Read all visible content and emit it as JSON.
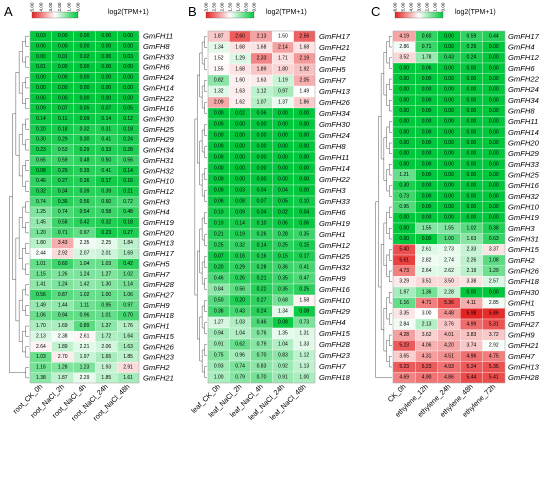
{
  "legend_title": "log2(TPM+1)",
  "chart_data": [
    {
      "type": "heatmap",
      "panel": "A",
      "legend_ticks": [
        "5.00",
        "4.00",
        "3.00",
        "2.00",
        "1.00",
        "0.00"
      ],
      "columns": [
        "root_CK_0h",
        "root_NaCl_2h",
        "root_NaCl_4h",
        "root_NaCl_24h",
        "root_NaCl_48h"
      ],
      "rows": [
        {
          "gene": "GmFH11",
          "values": [
            0.03,
            0.0,
            0.0,
            0.0,
            0.0
          ]
        },
        {
          "gene": "GmFH8",
          "values": [
            0.0,
            0.0,
            0.0,
            0.0,
            0.0
          ]
        },
        {
          "gene": "GmFH33",
          "values": [
            0.0,
            0.01,
            0.02,
            0.0,
            0.03
          ]
        },
        {
          "gene": "GmFH6",
          "values": [
            0.01,
            0.0,
            0.0,
            0.0,
            0.0
          ]
        },
        {
          "gene": "GmFH24",
          "values": [
            0.0,
            0.0,
            0.0,
            0.0,
            0.0
          ]
        },
        {
          "gene": "GmFH14",
          "values": [
            0.0,
            0.0,
            0.0,
            0.0,
            0.0
          ]
        },
        {
          "gene": "GmFH22",
          "values": [
            0.0,
            0.0,
            0.0,
            0.0,
            0.0
          ]
        },
        {
          "gene": "GmFH16",
          "values": [
            0.09,
            0.07,
            0.05,
            0.07,
            0.05
          ]
        },
        {
          "gene": "GmFH30",
          "values": [
            0.14,
            0.11,
            0.09,
            0.14,
            0.12
          ]
        },
        {
          "gene": "GmFH25",
          "values": [
            0.2,
            0.18,
            0.32,
            0.31,
            0.18
          ]
        },
        {
          "gene": "GmFH29",
          "values": [
            0.3,
            0.29,
            0.3,
            0.41,
            0.24
          ]
        },
        {
          "gene": "GmFH34",
          "values": [
            0.23,
            0.53,
            0.29,
            0.33,
            0.28
          ]
        },
        {
          "gene": "GmFH31",
          "values": [
            0.65,
            0.59,
            0.48,
            0.5,
            0.56
          ]
        },
        {
          "gene": "GmFH32",
          "values": [
            0.08,
            0.29,
            0.39,
            0.41,
            0.14
          ]
        },
        {
          "gene": "GmFH10",
          "values": [
            0.46,
            0.27,
            0.36,
            0.17,
            0.16
          ]
        },
        {
          "gene": "GmFH12",
          "values": [
            0.32,
            0.34,
            0.39,
            0.39,
            0.21
          ]
        },
        {
          "gene": "GmFH3",
          "values": [
            0.74,
            0.36,
            0.56,
            0.6,
            0.72
          ]
        },
        {
          "gene": "GmFH4",
          "values": [
            1.25,
            0.74,
            0.54,
            0.58,
            0.48
          ]
        },
        {
          "gene": "GmFH19",
          "values": [
            1.45,
            0.58,
            0.42,
            0.32,
            0.18
          ]
        },
        {
          "gene": "GmFH20",
          "values": [
            1.2,
            0.71,
            0.97,
            0.23,
            0.27
          ]
        },
        {
          "gene": "GmFH13",
          "values": [
            1.8,
            3.43,
            2.35,
            2.25,
            1.84
          ]
        },
        {
          "gene": "GmFH17",
          "values": [
            2.44,
            2.92,
            2.07,
            2.01,
            1.69
          ]
        },
        {
          "gene": "GmFH5",
          "values": [
            1.01,
            0.6,
            1.04,
            1.03,
            0.42
          ]
        },
        {
          "gene": "GmFH7",
          "values": [
            1.15,
            1.26,
            1.24,
            1.27,
            1.02
          ]
        },
        {
          "gene": "GmFH28",
          "values": [
            1.41,
            1.24,
            1.42,
            1.3,
            1.14
          ]
        },
        {
          "gene": "GmFH27",
          "values": [
            0.56,
            0.87,
            1.02,
            1.0,
            1.06
          ]
        },
        {
          "gene": "GmFH9",
          "values": [
            1.49,
            1.44,
            1.11,
            0.95,
            0.97
          ]
        },
        {
          "gene": "GmFH18",
          "values": [
            1.06,
            0.94,
            0.96,
            1.01,
            0.7
          ]
        },
        {
          "gene": "GmFH1",
          "values": [
            1.7,
            1.69,
            0.89,
            1.37,
            1.76
          ]
        },
        {
          "gene": "GmFH15",
          "values": [
            2.13,
            2.38,
            2.61,
            1.72,
            1.64
          ]
        },
        {
          "gene": "GmFH26",
          "values": [
            2.64,
            1.89,
            2.21,
            2.06,
            1.63
          ]
        },
        {
          "gene": "GmFH23",
          "values": [
            1.03,
            2.7,
            1.97,
            1.65,
            1.85
          ]
        },
        {
          "gene": "GmFH2",
          "values": [
            1.16,
            1.28,
            1.23,
            1.93,
            2.91
          ]
        },
        {
          "gene": "GmFH21",
          "values": [
            1.38,
            1.87,
            2.29,
            1.85,
            1.61
          ]
        }
      ]
    },
    {
      "type": "heatmap",
      "panel": "B",
      "legend_ticks": [
        "3.00",
        "2.50",
        "2.00",
        "1.50",
        "1.00",
        "0.50",
        "0.00"
      ],
      "columns": [
        "leaf_CK_0h",
        "leaf_NaCl_2h",
        "leaf_NaCl_4h",
        "leaf_NaCl_24h",
        "leaf_NaCl_48h"
      ],
      "rows": [
        {
          "gene": "GmFH17",
          "values": [
            1.87,
            2.6,
            2.13,
            1.5,
            2.56
          ]
        },
        {
          "gene": "GmFH21",
          "values": [
            1.34,
            1.68,
            1.68,
            2.14,
            1.68
          ]
        },
        {
          "gene": "GmFH2",
          "values": [
            1.52,
            1.29,
            2.33,
            1.71,
            2.19
          ]
        },
        {
          "gene": "GmFH5",
          "values": [
            1.55,
            1.68,
            1.89,
            1.8,
            1.92
          ]
        },
        {
          "gene": "GmFH7",
          "values": [
            0.82,
            1.6,
            1.63,
            1.19,
            2.05
          ]
        },
        {
          "gene": "GmFH13",
          "values": [
            1.32,
            1.63,
            1.12,
            0.97,
            1.49
          ]
        },
        {
          "gene": "GmFH26",
          "values": [
            2.09,
            1.62,
            1.07,
            1.37,
            1.86
          ]
        },
        {
          "gene": "GmFH34",
          "values": [
            0.0,
            0.02,
            0.06,
            0.0,
            0.0
          ]
        },
        {
          "gene": "GmFH30",
          "values": [
            0.0,
            0.0,
            0.0,
            0.0,
            0.0
          ]
        },
        {
          "gene": "GmFH24",
          "values": [
            0.0,
            0.0,
            0.0,
            0.0,
            0.0
          ]
        },
        {
          "gene": "GmFH8",
          "values": [
            0.0,
            0.0,
            0.0,
            0.0,
            0.0
          ]
        },
        {
          "gene": "GmFH11",
          "values": [
            0.0,
            0.0,
            0.0,
            0.0,
            0.0
          ]
        },
        {
          "gene": "GmFH14",
          "values": [
            0.0,
            0.0,
            0.0,
            0.0,
            0.0
          ]
        },
        {
          "gene": "GmFH22",
          "values": [
            0.0,
            0.0,
            0.0,
            0.0,
            0.0
          ]
        },
        {
          "gene": "GmFH3",
          "values": [
            0.0,
            0.03,
            0.04,
            0.04,
            0.0
          ]
        },
        {
          "gene": "GmFH33",
          "values": [
            0.06,
            0.08,
            0.07,
            0.05,
            0.1
          ]
        },
        {
          "gene": "GmFH6",
          "values": [
            0.1,
            0.09,
            0.04,
            0.02,
            0.04
          ]
        },
        {
          "gene": "GmFH19",
          "values": [
            0.1,
            0.14,
            0.1,
            0.06,
            0.06
          ]
        },
        {
          "gene": "GmFH1",
          "values": [
            0.21,
            0.19,
            0.26,
            0.28,
            0.35
          ]
        },
        {
          "gene": "GmFH12",
          "values": [
            0.25,
            0.32,
            0.14,
            0.25,
            0.15
          ]
        },
        {
          "gene": "GmFH25",
          "values": [
            0.07,
            0.16,
            0.16,
            0.15,
            0.17
          ]
        },
        {
          "gene": "GmFH32",
          "values": [
            0.2,
            0.29,
            0.28,
            0.36,
            0.41
          ]
        },
        {
          "gene": "GmFH9",
          "values": [
            0.46,
            0.26,
            0.21,
            0.35,
            0.47
          ]
        },
        {
          "gene": "GmFH16",
          "values": [
            0.84,
            0.56,
            0.22,
            0.35,
            0.25
          ]
        },
        {
          "gene": "GmFH10",
          "values": [
            0.5,
            0.2,
            0.27,
            0.68,
            1.58
          ]
        },
        {
          "gene": "GmFH29",
          "values": [
            0.38,
            0.43,
            0.24,
            1.34,
            0.08
          ]
        },
        {
          "gene": "GmFH4",
          "values": [
            1.27,
            1.03,
            0.46,
            0.08,
            0.73
          ]
        },
        {
          "gene": "GmFH15",
          "values": [
            0.94,
            1.04,
            0.76,
            1.35,
            1.31
          ]
        },
        {
          "gene": "GmFH28",
          "values": [
            0.91,
            0.62,
            0.79,
            1.04,
            1.33
          ]
        },
        {
          "gene": "GmFH23",
          "values": [
            0.75,
            0.96,
            0.7,
            0.83,
            1.12
          ]
        },
        {
          "gene": "GmFH7",
          "values": [
            0.93,
            0.74,
            0.83,
            0.92,
            1.13
          ]
        },
        {
          "gene": "GmFH18",
          "values": [
            1.0,
            0.79,
            0.7,
            0.91,
            1.0
          ]
        }
      ]
    },
    {
      "type": "heatmap",
      "panel": "C",
      "legend_ticks": [
        "6.00",
        "5.00",
        "4.00",
        "3.00",
        "2.00",
        "1.00",
        "0.00"
      ],
      "columns": [
        "CK_0h",
        "ethylene_12h",
        "ethylene_24h",
        "ethylene_48h",
        "ethylene_72h"
      ],
      "rows": [
        {
          "gene": "GmFH17",
          "values": [
            4.19,
            0.6,
            0.0,
            0.59,
            0.44
          ]
        },
        {
          "gene": "GmFH4",
          "values": [
            2.86,
            0.71,
            0.0,
            0.29,
            0.0
          ]
        },
        {
          "gene": "GmFH12",
          "values": [
            3.52,
            1.78,
            0.43,
            0.24,
            0.0
          ]
        },
        {
          "gene": "GmFH6",
          "values": [
            0.0,
            0.06,
            0.0,
            0.0,
            0.0
          ]
        },
        {
          "gene": "GmFH22",
          "values": [
            0.0,
            0.0,
            0.0,
            0.0,
            0.0
          ]
        },
        {
          "gene": "GmFH24",
          "values": [
            0.0,
            0.0,
            0.0,
            0.0,
            0.0
          ]
        },
        {
          "gene": "GmFH34",
          "values": [
            0.0,
            0.0,
            0.0,
            0.0,
            0.0
          ]
        },
        {
          "gene": "GmFH8",
          "values": [
            0.0,
            0.0,
            0.0,
            0.0,
            0.0
          ]
        },
        {
          "gene": "GmFH11",
          "values": [
            0.0,
            0.0,
            0.0,
            0.0,
            0.0
          ]
        },
        {
          "gene": "GmFH14",
          "values": [
            0.0,
            0.0,
            0.0,
            0.0,
            0.0
          ]
        },
        {
          "gene": "GmFH20",
          "values": [
            0.0,
            0.0,
            0.0,
            0.0,
            0.0
          ]
        },
        {
          "gene": "GmFH29",
          "values": [
            0.0,
            0.0,
            0.0,
            0.0,
            0.0
          ]
        },
        {
          "gene": "GmFH33",
          "values": [
            0.0,
            0.0,
            0.0,
            0.0,
            0.0
          ]
        },
        {
          "gene": "GmFH25",
          "values": [
            1.21,
            0.0,
            0.0,
            0.0,
            0.0
          ]
        },
        {
          "gene": "GmFH16",
          "values": [
            0.3,
            0.0,
            0.0,
            0.0,
            0.0
          ]
        },
        {
          "gene": "GmFH32",
          "values": [
            0.73,
            0.0,
            0.0,
            0.0,
            0.0
          ]
        },
        {
          "gene": "GmFH10",
          "values": [
            0.95,
            0.0,
            0.0,
            0.0,
            0.0
          ]
        },
        {
          "gene": "GmFH19",
          "values": [
            0.0,
            0.0,
            0.0,
            0.0,
            0.0
          ]
        },
        {
          "gene": "GmFH3",
          "values": [
            0.0,
            1.55,
            1.55,
            1.02,
            0.38
          ]
        },
        {
          "gene": "GmFH31",
          "values": [
            0.0,
            0.0,
            1.0,
            1.63,
            0.63
          ]
        },
        {
          "gene": "GmFH15",
          "values": [
            5.4,
            2.61,
            2.73,
            2.33,
            3.37
          ]
        },
        {
          "gene": "GmFH2",
          "values": [
            5.61,
            2.82,
            2.74,
            2.26,
            1.08
          ]
        },
        {
          "gene": "GmFH26",
          "values": [
            4.73,
            2.64,
            2.62,
            2.19,
            1.29
          ]
        },
        {
          "gene": "GmFH18",
          "values": [
            3.29,
            3.51,
            3.5,
            3.38,
            2.57
          ]
        },
        {
          "gene": "GmFH30",
          "values": [
            1.97,
            1.36,
            2.28,
            0.0,
            0.0
          ]
        },
        {
          "gene": "GmFH1",
          "values": [
            1.16,
            4.71,
            5.36,
            4.11,
            2.85
          ]
        },
        {
          "gene": "GmFH5",
          "values": [
            3.35,
            3.0,
            4.48,
            5.98,
            5.86
          ]
        },
        {
          "gene": "GmFH27",
          "values": [
            2.84,
            2.13,
            3.76,
            4.99,
            5.31
          ]
        },
        {
          "gene": "GmFH9",
          "values": [
            4.28,
            3.62,
            4.01,
            3.83,
            3.72
          ]
        },
        {
          "gene": "GmFH21",
          "values": [
            5.23,
            4.06,
            4.2,
            3.74,
            2.92
          ]
        },
        {
          "gene": "GmFH7",
          "values": [
            3.65,
            4.31,
            4.51,
            4.96,
            4.75
          ]
        },
        {
          "gene": "GmFH13",
          "values": [
            5.23,
            5.23,
            4.93,
            5.24,
            5.35
          ]
        },
        {
          "gene": "GmFH28",
          "values": [
            4.69,
            4.9,
            4.86,
            5.44,
            5.41
          ]
        }
      ]
    }
  ]
}
